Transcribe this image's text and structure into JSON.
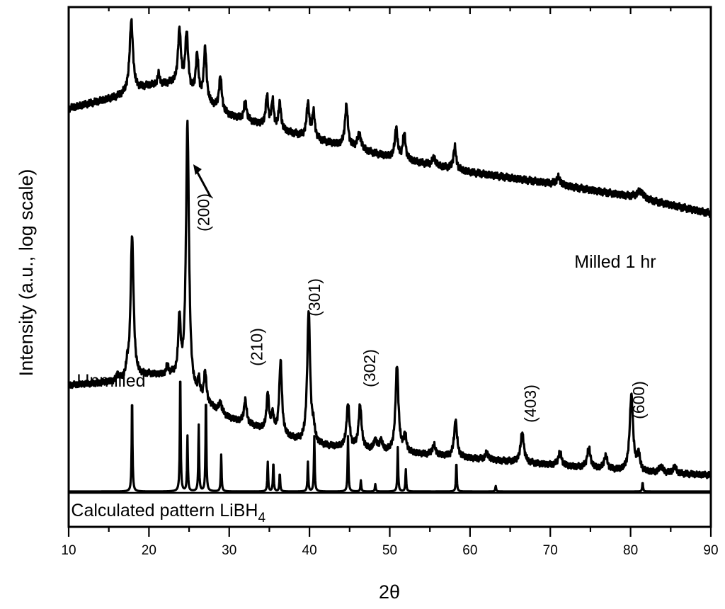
{
  "chart_data": {
    "type": "line",
    "xlabel": "2θ",
    "ylabel": "Intensity (a.u., log scale)",
    "xlim": [
      10,
      90
    ],
    "x_ticks": [
      10,
      20,
      30,
      40,
      50,
      60,
      70,
      80,
      90
    ],
    "y_ticks_labeled": false,
    "grid": false,
    "series": [
      {
        "name": "Milled 1 hr",
        "baseline": [
          [
            10,
            0.73
          ],
          [
            16,
            0.76
          ],
          [
            20,
            0.79
          ],
          [
            23,
            0.795
          ],
          [
            30,
            0.71
          ],
          [
            40,
            0.65
          ],
          [
            50,
            0.6
          ],
          [
            60,
            0.56
          ],
          [
            70,
            0.53
          ],
          [
            80,
            0.495
          ],
          [
            90,
            0.45
          ]
        ],
        "peaks": [
          [
            17.8,
            0.19,
            0.25
          ],
          [
            21.2,
            0.03,
            0.15
          ],
          [
            23.8,
            0.15,
            0.22
          ],
          [
            24.7,
            0.15,
            0.22
          ],
          [
            26.0,
            0.11,
            0.2
          ],
          [
            27.0,
            0.14,
            0.2
          ],
          [
            28.9,
            0.09,
            0.2
          ],
          [
            32.0,
            0.05,
            0.2
          ],
          [
            34.7,
            0.08,
            0.18
          ],
          [
            35.4,
            0.07,
            0.18
          ],
          [
            36.3,
            0.07,
            0.18
          ],
          [
            39.8,
            0.09,
            0.2
          ],
          [
            40.5,
            0.07,
            0.2
          ],
          [
            44.6,
            0.11,
            0.22
          ],
          [
            46.2,
            0.04,
            0.3
          ],
          [
            50.8,
            0.08,
            0.2
          ],
          [
            51.8,
            0.07,
            0.2
          ],
          [
            55.5,
            0.02,
            0.25
          ],
          [
            58.1,
            0.06,
            0.2
          ],
          [
            71.0,
            0.02,
            0.3
          ],
          [
            81.2,
            0.02,
            0.5
          ]
        ]
      },
      {
        "name": "Unmilled",
        "baseline": [
          [
            10,
            0.3
          ],
          [
            16,
            0.31
          ],
          [
            20,
            0.33
          ],
          [
            23,
            0.325
          ],
          [
            26,
            0.26
          ],
          [
            30,
            0.2
          ],
          [
            40,
            0.12
          ],
          [
            50,
            0.1
          ],
          [
            60,
            0.08
          ],
          [
            70,
            0.06
          ],
          [
            80,
            0.04
          ],
          [
            90,
            0.03
          ]
        ],
        "peaks": [
          [
            16.1,
            0.02,
            0.15
          ],
          [
            17.3,
            0.03,
            0.15
          ],
          [
            17.9,
            0.43,
            0.22
          ],
          [
            22.3,
            0.03,
            0.15
          ],
          [
            23.8,
            0.18,
            0.18
          ],
          [
            24.8,
            0.8,
            0.22
          ],
          [
            26.2,
            0.05,
            0.15
          ],
          [
            27.0,
            0.09,
            0.18
          ],
          [
            28.9,
            0.03,
            0.2
          ],
          [
            32.0,
            0.07,
            0.2
          ],
          [
            34.8,
            0.11,
            0.18
          ],
          [
            35.4,
            0.05,
            0.18
          ],
          [
            36.4,
            0.22,
            0.2
          ],
          [
            39.9,
            0.4,
            0.22
          ],
          [
            40.5,
            0.04,
            0.2
          ],
          [
            44.8,
            0.13,
            0.22
          ],
          [
            46.3,
            0.13,
            0.22
          ],
          [
            48.2,
            0.03,
            0.2
          ],
          [
            48.9,
            0.03,
            0.2
          ],
          [
            50.9,
            0.26,
            0.22
          ],
          [
            51.9,
            0.05,
            0.2
          ],
          [
            55.5,
            0.03,
            0.25
          ],
          [
            58.2,
            0.11,
            0.22
          ],
          [
            62.1,
            0.02,
            0.25
          ],
          [
            66.5,
            0.09,
            0.25
          ],
          [
            71.2,
            0.04,
            0.25
          ],
          [
            74.8,
            0.06,
            0.25
          ],
          [
            76.9,
            0.04,
            0.25
          ],
          [
            80.1,
            0.23,
            0.25
          ],
          [
            81.0,
            0.05,
            0.2
          ],
          [
            83.8,
            0.02,
            0.25
          ],
          [
            85.5,
            0.02,
            0.25
          ]
        ]
      },
      {
        "name": "Calculated pattern LiBH4",
        "baseline": [
          [
            10,
            0.0
          ],
          [
            90,
            0.0
          ]
        ],
        "peaks": [
          [
            17.9,
            0.26,
            0.06
          ],
          [
            23.9,
            0.33,
            0.06
          ],
          [
            24.8,
            0.15,
            0.06
          ],
          [
            26.2,
            0.18,
            0.06
          ],
          [
            27.1,
            0.26,
            0.06
          ],
          [
            29.0,
            0.1,
            0.06
          ],
          [
            34.8,
            0.08,
            0.06
          ],
          [
            35.5,
            0.08,
            0.06
          ],
          [
            36.3,
            0.05,
            0.06
          ],
          [
            39.8,
            0.08,
            0.06
          ],
          [
            40.6,
            0.15,
            0.06
          ],
          [
            44.8,
            0.15,
            0.06
          ],
          [
            46.4,
            0.03,
            0.06
          ],
          [
            48.2,
            0.02,
            0.06
          ],
          [
            51.0,
            0.12,
            0.06
          ],
          [
            52.0,
            0.06,
            0.06
          ],
          [
            58.3,
            0.08,
            0.06
          ],
          [
            63.2,
            0.015,
            0.06
          ],
          [
            81.5,
            0.025,
            0.06
          ]
        ]
      }
    ],
    "annotations": [
      {
        "text": "Milled 1 hr",
        "x": 73,
        "series": "Milled 1 hr"
      },
      {
        "text": "Unmilled",
        "x": 11,
        "series": "Unmilled"
      },
      {
        "text": "Calculated pattern LiBH",
        "subscript": "4",
        "x": 10.3,
        "series": "Calculated pattern LiBH4"
      }
    ],
    "miller_labels": [
      {
        "text": "(200)",
        "x": 26.8,
        "arrow_to_x": 24.9
      },
      {
        "text": "(210)",
        "x": 33.4
      },
      {
        "text": "(301)",
        "x": 40.6
      },
      {
        "text": "(302)",
        "x": 47.5
      },
      {
        "text": "(403)",
        "x": 67.5
      },
      {
        "text": "(600)",
        "x": 81.0
      }
    ]
  }
}
